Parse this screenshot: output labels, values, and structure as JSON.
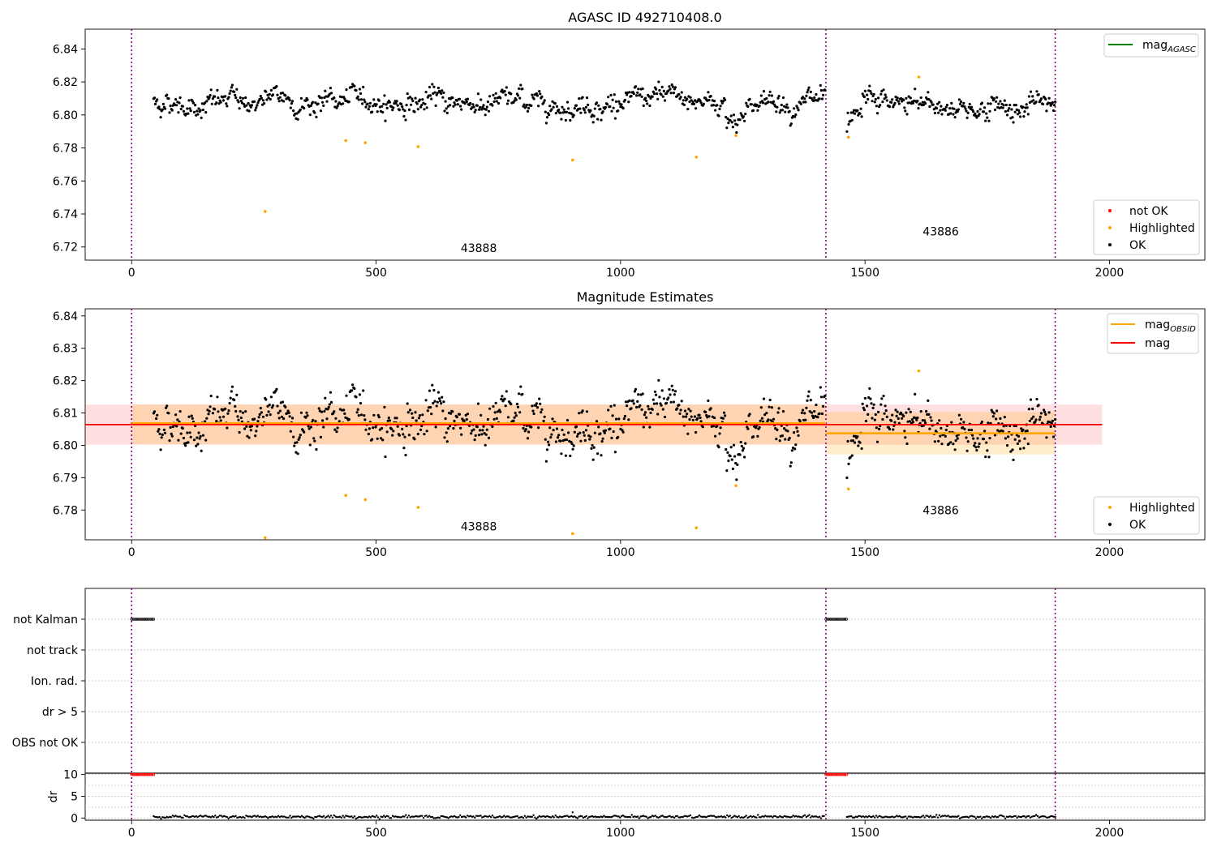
{
  "figure": {
    "panel1_title": "AGASC ID 492710408.0",
    "panel2_title": "Magnitude Estimates"
  },
  "chart_data": [
    {
      "type": "scatter",
      "title": "AGASC ID 492710408.0",
      "xlabel": "",
      "ylabel": "",
      "xlim": [
        -95,
        2195
      ],
      "ylim": [
        6.712,
        6.852
      ],
      "x_ticks": [
        "0",
        "500",
        "1000",
        "1500",
        "2000"
      ],
      "y_ticks": [
        "6.72",
        "6.74",
        "6.76",
        "6.78",
        "6.80",
        "6.82",
        "6.84"
      ],
      "obsid_boundaries": [
        0,
        1420,
        1889
      ],
      "obsid_labels": [
        {
          "text": "43888",
          "x": 710,
          "y": 6.717
        },
        {
          "text": "43886",
          "x": 1655,
          "y": 6.727
        }
      ],
      "ok_segments": [
        {
          "x_start": 45,
          "x_end": 1418,
          "mean": 6.808,
          "spread": 0.007
        },
        {
          "x_start": 1463,
          "x_end": 1889,
          "mean": 6.805,
          "spread": 0.007
        }
      ],
      "highlighted_points": [
        [
          273,
          6.7415
        ],
        [
          438,
          6.7845
        ],
        [
          478,
          6.7832
        ],
        [
          586,
          6.7808
        ],
        [
          902,
          6.7727
        ],
        [
          1155,
          6.7745
        ],
        [
          1236,
          6.7875
        ],
        [
          1466,
          6.7865
        ],
        [
          1610,
          6.823
        ]
      ],
      "legend_lines": [
        {
          "name": "mag",
          "subscript": "AGASC",
          "color": "#008000"
        }
      ],
      "legend_points": [
        {
          "name": "not OK",
          "color": "#ff0000"
        },
        {
          "name": "Highlighted",
          "color": "#ffa500"
        },
        {
          "name": "OK",
          "color": "#000000"
        }
      ]
    },
    {
      "type": "scatter",
      "title": "Magnitude Estimates",
      "xlabel": "",
      "ylabel": "",
      "xlim": [
        -95,
        2195
      ],
      "ylim": [
        6.7708,
        6.8422
      ],
      "x_ticks": [
        "0",
        "500",
        "1000",
        "1500",
        "2000"
      ],
      "y_ticks": [
        "6.78",
        "6.79",
        "6.80",
        "6.81",
        "6.82",
        "6.83",
        "6.84"
      ],
      "obsid_boundaries": [
        0,
        1420,
        1889
      ],
      "obsid_labels": [
        {
          "text": "43888",
          "x": 710,
          "y": 6.7737
        },
        {
          "text": "43886",
          "x": 1655,
          "y": 6.7787
        }
      ],
      "mag_line": {
        "value": 6.8064,
        "x_range": [
          -95,
          1985
        ],
        "band": [
          6.8002,
          6.8126
        ],
        "color": "#ff0000"
      },
      "mag_obsid": [
        {
          "x_range": [
            0,
            1420
          ],
          "value": 6.8068,
          "band": [
            6.8003,
            6.8126
          ]
        },
        {
          "x_range": [
            1420,
            1889
          ],
          "value": 6.8037,
          "band": [
            6.7972,
            6.8103
          ]
        }
      ],
      "highlighted_points": [
        [
          273,
          6.7714
        ],
        [
          438,
          6.7845
        ],
        [
          478,
          6.7832
        ],
        [
          586,
          6.7808
        ],
        [
          902,
          6.7727
        ],
        [
          1155,
          6.7745
        ],
        [
          1236,
          6.7875
        ],
        [
          1466,
          6.7865
        ],
        [
          1610,
          6.823
        ]
      ],
      "legend_lines": [
        {
          "name": "mag",
          "subscript": "OBSID",
          "color": "#ffa500"
        },
        {
          "name": "mag",
          "subscript": "",
          "color": "#ff0000"
        }
      ],
      "legend_points": [
        {
          "name": "Highlighted",
          "color": "#ffa500"
        },
        {
          "name": "OK",
          "color": "#000000"
        }
      ]
    },
    {
      "type": "scatter",
      "title": "",
      "xlabel": "",
      "ylabel": "",
      "xlim": [
        -95,
        2195
      ],
      "categories": [
        "not Kalman",
        "not track",
        "Ion. rad.",
        "dr > 5",
        "OBS not OK"
      ],
      "flag_runs": [
        {
          "category": "not Kalman",
          "x_start": 0,
          "x_end": 45
        },
        {
          "category": "not Kalman",
          "x_start": 1420,
          "x_end": 1463
        }
      ],
      "obsid_boundaries": [
        0,
        1420,
        1889
      ]
    },
    {
      "type": "scatter",
      "title": "",
      "xlabel": "",
      "ylabel": "dr",
      "xlim": [
        -95,
        2195
      ],
      "ylim": [
        -0.5,
        10.3
      ],
      "x_ticks": [
        "0",
        "500",
        "1000",
        "1500",
        "2000"
      ],
      "y_ticks": [
        "0",
        "5",
        "10"
      ],
      "dr_clipped_runs": [
        {
          "x_start": 0,
          "x_end": 45,
          "value": 10,
          "color": "#ff0000"
        },
        {
          "x_start": 1420,
          "x_end": 1463,
          "value": 10,
          "color": "#ff0000"
        }
      ],
      "dr_segments": [
        {
          "x_start": 45,
          "x_end": 1418,
          "typical": 0.3
        },
        {
          "x_start": 1463,
          "x_end": 1889,
          "typical": 0.3
        }
      ],
      "obsid_boundaries": [
        0,
        1420,
        1889
      ]
    }
  ]
}
